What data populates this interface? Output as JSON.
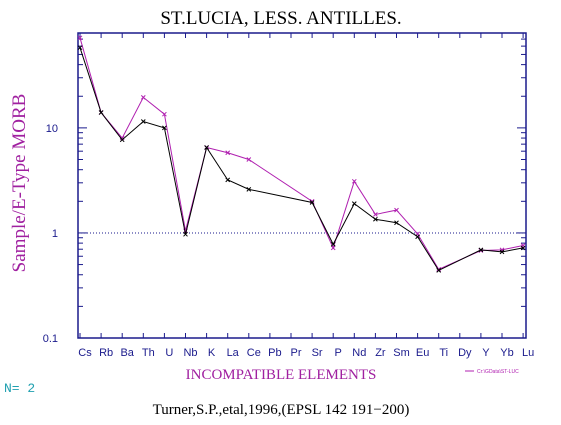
{
  "chart_data": {
    "type": "line",
    "title": "ST.LUCIA,  LESS.  ANTILLES.",
    "ylabel": "Sample/E-Type MORB",
    "xlabel": "INCOMPATIBLE ELEMENTS",
    "yscale": "log",
    "ylim": [
      0.1,
      80
    ],
    "yticks": [
      {
        "value": 10,
        "label": "10"
      },
      {
        "value": 1,
        "label": "1"
      },
      {
        "value": 0.1,
        "label": "0.1"
      }
    ],
    "reference_line": 1,
    "categories": [
      "Cs",
      "Rb",
      "Ba",
      "Th",
      "U",
      "Nb",
      "K",
      "La",
      "Ce",
      "Pb",
      "Pr",
      "Sr",
      "P",
      "Nd",
      "Zr",
      "Sm",
      "Eu",
      "Ti",
      "Dy",
      "Y",
      "Yb",
      "Lu"
    ],
    "series": [
      {
        "color": "#b020b0",
        "marker": "x",
        "values": [
          72,
          14,
          8,
          19.5,
          13.5,
          1.05,
          6.5,
          5.8,
          5.0,
          null,
          null,
          2.0,
          0.72,
          3.1,
          1.5,
          1.65,
          0.98,
          0.45,
          null,
          0.68,
          0.69,
          0.76
        ]
      },
      {
        "color": "#000000",
        "marker": "x",
        "values": [
          58,
          14,
          7.7,
          11.5,
          10.0,
          0.97,
          6.5,
          3.2,
          2.6,
          null,
          null,
          1.95,
          0.78,
          1.9,
          1.35,
          1.25,
          0.92,
          0.44,
          null,
          0.69,
          0.66,
          0.72
        ]
      }
    ],
    "legend": {
      "placement": "bottom-right",
      "text": "Cr:\\GData\\ST-LUC"
    },
    "n_label": "N= 2",
    "source": "Turner,S.P.,etal,1996,(EPSL 142 191−200)",
    "colors": {
      "frame": "#1a1a8c",
      "tick_labels": "#1a1a8c",
      "xlabel": "#a020a0",
      "ylabel": "#a020a0",
      "n_label": "#20a0b0",
      "title": "#000000"
    }
  }
}
